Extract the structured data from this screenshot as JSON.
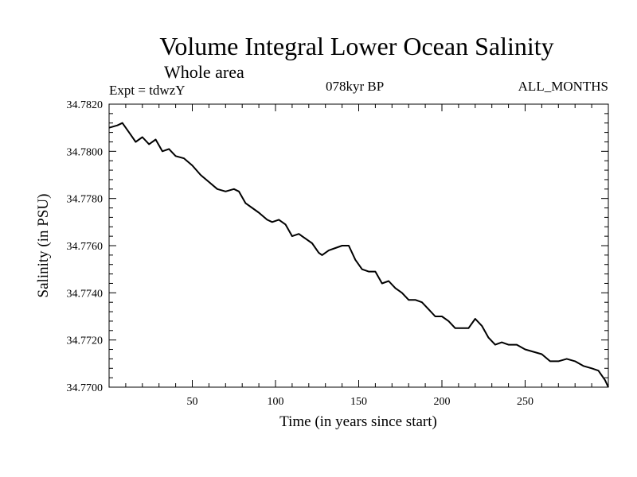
{
  "header": {
    "title": "Volume Integral Lower Ocean Salinity",
    "subtitle": "Whole area",
    "experiment": "Expt = tdwzY",
    "period": "078kyr BP",
    "months": "ALL_MONTHS"
  },
  "chart_data": {
    "type": "line",
    "xlabel": "Time (in years since start)",
    "ylabel": "Salinity (in PSU)",
    "xlim": [
      0,
      300
    ],
    "ylim": [
      34.77,
      34.782
    ],
    "xticks": [
      50,
      100,
      150,
      200,
      250
    ],
    "yticks": [
      34.77,
      34.772,
      34.774,
      34.776,
      34.778,
      34.78,
      34.782
    ],
    "ytick_labels": [
      "34.7700",
      "34.7720",
      "34.7740",
      "34.7760",
      "34.7780",
      "34.7800",
      "34.7820"
    ],
    "grid": false,
    "series": [
      {
        "x": [
          0,
          5,
          8,
          12,
          16,
          20,
          24,
          28,
          32,
          36,
          40,
          45,
          50,
          55,
          60,
          65,
          70,
          75,
          78,
          82,
          86,
          90,
          95,
          98,
          102,
          106,
          110,
          114,
          118,
          122,
          126,
          128,
          132,
          136,
          140,
          144,
          148,
          152,
          156,
          160,
          164,
          168,
          172,
          176,
          180,
          184,
          188,
          192,
          196,
          200,
          204,
          208,
          212,
          216,
          220,
          224,
          228,
          232,
          236,
          240,
          245,
          250,
          255,
          260,
          265,
          270,
          275,
          280,
          285,
          290,
          294,
          298,
          300
        ],
        "y": [
          34.781,
          34.7811,
          34.7812,
          34.7808,
          34.7804,
          34.7806,
          34.7803,
          34.7805,
          34.78,
          34.7801,
          34.7798,
          34.7797,
          34.7794,
          34.779,
          34.7787,
          34.7784,
          34.7783,
          34.7784,
          34.7783,
          34.7778,
          34.7776,
          34.7774,
          34.7771,
          34.777,
          34.7771,
          34.7769,
          34.7764,
          34.7765,
          34.7763,
          34.7761,
          34.7757,
          34.7756,
          34.7758,
          34.7759,
          34.776,
          34.776,
          34.7754,
          34.775,
          34.7749,
          34.7749,
          34.7744,
          34.7745,
          34.7742,
          34.774,
          34.7737,
          34.7737,
          34.7736,
          34.7733,
          34.773,
          34.773,
          34.7728,
          34.7725,
          34.7725,
          34.7725,
          34.7729,
          34.7726,
          34.7721,
          34.7718,
          34.7719,
          34.7718,
          34.7718,
          34.7716,
          34.7715,
          34.7714,
          34.7711,
          34.7711,
          34.7712,
          34.7711,
          34.7709,
          34.7708,
          34.7707,
          34.7703,
          34.77
        ]
      }
    ]
  }
}
